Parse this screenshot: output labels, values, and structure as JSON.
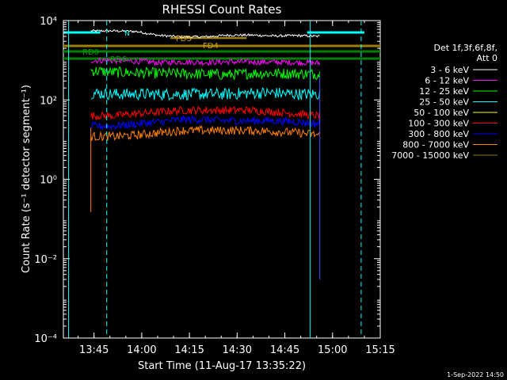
{
  "chart_data": {
    "type": "line",
    "title": "RHESSI Count Rates",
    "xlabel": "Start Time (11-Aug-17 13:35:22)",
    "ylabel": "Count Rate (s⁻¹ detector segment⁻¹)",
    "yscale": "log",
    "xlim": [
      "13:35:22",
      "15:15"
    ],
    "ylim": [
      0.0001,
      10000
    ],
    "x_ticks": [
      "13:45",
      "14:00",
      "14:15",
      "14:30",
      "14:45",
      "15:00",
      "15:15"
    ],
    "y_ticks": [
      "10⁻⁴",
      "10⁻²",
      "10⁰",
      "10²",
      "10⁴"
    ],
    "legend_title": [
      "Det 1f,3f,6f,8f,",
      "Att 0"
    ],
    "legend_position": "right",
    "series": [
      {
        "name": "3 - 6 keV",
        "color": "#000000",
        "start": "13:44",
        "end": "14:56",
        "values": [
          5500,
          5500,
          5300,
          4200,
          3900,
          3900,
          4300,
          4300,
          4100,
          4200,
          4000
        ]
      },
      {
        "name": "6 - 12 keV",
        "color": "#ff00ff",
        "start": "13:44",
        "end": "14:56",
        "values": [
          1000,
          980,
          950,
          870,
          920,
          880,
          920,
          900,
          900,
          880,
          850
        ]
      },
      {
        "name": "12 - 25 keV",
        "color": "#00ff00",
        "start": "13:44",
        "end": "14:56",
        "values": [
          550,
          500,
          480,
          470,
          460,
          450,
          430,
          470,
          470,
          460,
          450
        ]
      },
      {
        "name": "25 - 50 keV",
        "color": "#00ffff",
        "start": "13:44",
        "end": "14:56",
        "values": [
          150,
          140,
          140,
          140,
          140,
          140,
          140,
          150,
          150,
          140,
          140
        ]
      },
      {
        "name": "50 - 100 keV",
        "color": "#ffff00",
        "start": "13:44",
        "end": "14:56",
        "values": []
      },
      {
        "name": "100 - 300 keV",
        "color": "#ff0000",
        "start": "13:44",
        "end": "14:56",
        "values": [
          40,
          40,
          45,
          50,
          55,
          55,
          55,
          55,
          50,
          45,
          40
        ]
      },
      {
        "name": "300 - 800 keV",
        "color": "#0000ff",
        "start": "13:44",
        "end": "14:56",
        "values": [
          22,
          22,
          25,
          28,
          32,
          32,
          30,
          30,
          30,
          28,
          25
        ]
      },
      {
        "name": "800 - 7000 keV",
        "color": "#ff8000",
        "start": "13:44",
        "end": "14:56",
        "values": [
          12,
          12,
          13,
          15,
          17,
          17,
          17,
          17,
          16,
          15,
          13
        ]
      },
      {
        "name": "7000 - 15000 keV",
        "color": "#808000",
        "start": "13:44",
        "end": "14:56",
        "values": []
      }
    ],
    "annotations": [
      "N",
      "FD3",
      "FD4",
      "RD0",
      "RD6"
    ],
    "vertical_markers": [
      {
        "time": "13:37",
        "style": "solid",
        "color": "#00ffff"
      },
      {
        "time": "13:49",
        "style": "dashed",
        "color": "#00ffff"
      },
      {
        "time": "14:53",
        "style": "solid",
        "color": "#00ffff"
      },
      {
        "time": "15:09",
        "style": "dashed",
        "color": "#00ffff"
      }
    ]
  },
  "timestamp": "1-Sep-2022 14:50"
}
